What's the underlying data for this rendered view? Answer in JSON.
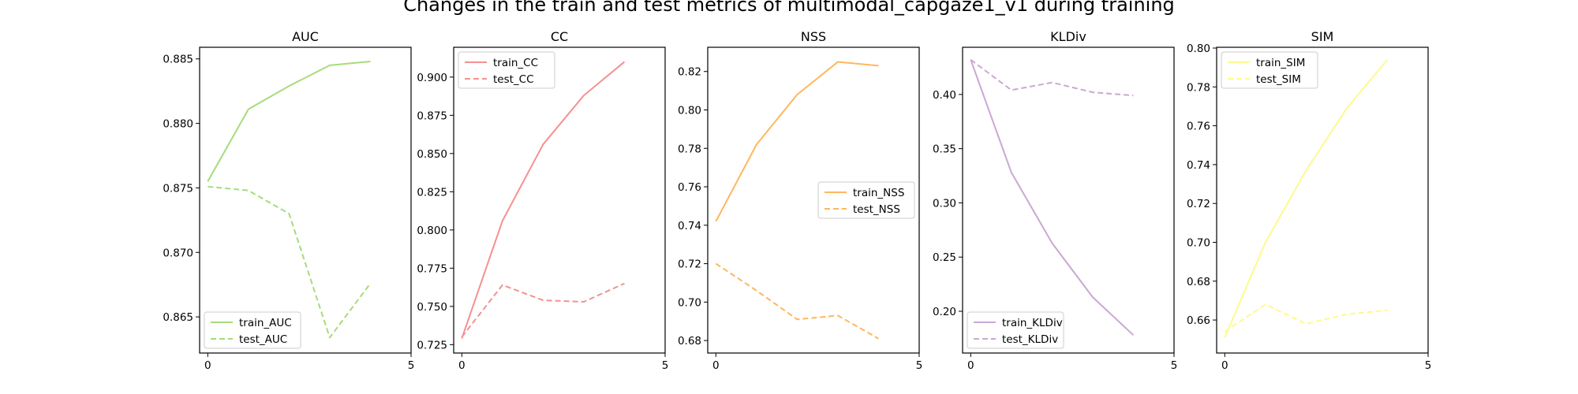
{
  "figure": {
    "title": "Changes in the train and test metrics of multimodal_capgaze1_v1 during training"
  },
  "chart_data": [
    {
      "type": "line",
      "title": "AUC",
      "color": "#a6dc7c",
      "x": [
        0,
        1,
        2,
        3,
        4
      ],
      "xticks": [
        "0",
        "5"
      ],
      "xlim": [
        -0.2,
        5
      ],
      "ylim": [
        0.8622,
        0.8859
      ],
      "yticks": [
        0.865,
        0.87,
        0.875,
        0.88,
        0.885
      ],
      "ytick_labels": [
        "0.865",
        "0.870",
        "0.875",
        "0.880",
        "0.885"
      ],
      "legend_loc": "lower-left",
      "series": [
        {
          "name": "train_AUC",
          "style": "solid",
          "values": [
            0.8755,
            0.8811,
            0.8829,
            0.8845,
            0.8848
          ]
        },
        {
          "name": "test_AUC",
          "style": "dashed",
          "values": [
            0.8751,
            0.8748,
            0.873,
            0.8634,
            0.8676
          ]
        }
      ]
    },
    {
      "type": "line",
      "title": "CC",
      "color": "#f4918f",
      "x": [
        0,
        1,
        2,
        3,
        4
      ],
      "xticks": [
        "0",
        "5"
      ],
      "xlim": [
        -0.2,
        5
      ],
      "ylim": [
        0.7195,
        0.9195
      ],
      "yticks": [
        0.725,
        0.75,
        0.775,
        0.8,
        0.825,
        0.85,
        0.875,
        0.9
      ],
      "ytick_labels": [
        "0.725",
        "0.750",
        "0.775",
        "0.800",
        "0.825",
        "0.850",
        "0.875",
        "0.900"
      ],
      "legend_loc": "upper-left",
      "series": [
        {
          "name": "train_CC",
          "style": "solid",
          "values": [
            0.729,
            0.806,
            0.856,
            0.888,
            0.91
          ]
        },
        {
          "name": "test_CC",
          "style": "dashed",
          "values": [
            0.73,
            0.764,
            0.754,
            0.753,
            0.765
          ]
        }
      ]
    },
    {
      "type": "line",
      "title": "NSS",
      "color": "#ffb75e",
      "x": [
        0,
        1,
        2,
        3,
        4
      ],
      "xticks": [
        "0",
        "5"
      ],
      "xlim": [
        -0.2,
        5
      ],
      "ylim": [
        0.6735,
        0.8326
      ],
      "yticks": [
        0.68,
        0.7,
        0.72,
        0.74,
        0.76,
        0.78,
        0.8,
        0.82
      ],
      "ytick_labels": [
        "0.68",
        "0.70",
        "0.72",
        "0.74",
        "0.76",
        "0.78",
        "0.80",
        "0.82"
      ],
      "legend_loc": "center-right",
      "series": [
        {
          "name": "train_NSS",
          "style": "solid",
          "values": [
            0.742,
            0.782,
            0.808,
            0.825,
            0.823
          ]
        },
        {
          "name": "test_NSS",
          "style": "dashed",
          "values": [
            0.72,
            0.706,
            0.691,
            0.693,
            0.681
          ]
        }
      ]
    },
    {
      "type": "line",
      "title": "KLDiv",
      "color": "#c9a8d4",
      "x": [
        0,
        1,
        2,
        3,
        4
      ],
      "xticks": [
        "0",
        "5"
      ],
      "xlim": [
        -0.2,
        5
      ],
      "ylim": [
        0.1615,
        0.4435
      ],
      "yticks": [
        0.2,
        0.25,
        0.3,
        0.35,
        0.4
      ],
      "ytick_labels": [
        "0.20",
        "0.25",
        "0.30",
        "0.35",
        "0.40"
      ],
      "legend_loc": "lower-left",
      "series": [
        {
          "name": "train_KLDiv",
          "style": "solid",
          "values": [
            0.432,
            0.328,
            0.263,
            0.213,
            0.178
          ]
        },
        {
          "name": "test_KLDiv",
          "style": "dashed",
          "values": [
            0.432,
            0.404,
            0.411,
            0.402,
            0.399
          ]
        }
      ]
    },
    {
      "type": "line",
      "title": "SIM",
      "color": "#fdfa8e",
      "x": [
        0,
        1,
        2,
        3,
        4
      ],
      "xticks": [
        "0",
        "5"
      ],
      "xlim": [
        -0.2,
        5
      ],
      "ylim": [
        0.643,
        0.8004
      ],
      "yticks": [
        0.66,
        0.68,
        0.7,
        0.72,
        0.74,
        0.76,
        0.78,
        0.8
      ],
      "ytick_labels": [
        "0.66",
        "0.68",
        "0.70",
        "0.72",
        "0.74",
        "0.76",
        "0.78",
        "0.80"
      ],
      "legend_loc": "upper-left",
      "series": [
        {
          "name": "train_SIM",
          "style": "solid",
          "values": [
            0.651,
            0.7,
            0.737,
            0.769,
            0.794
          ]
        },
        {
          "name": "test_SIM",
          "style": "dashed",
          "values": [
            0.654,
            0.668,
            0.658,
            0.663,
            0.665
          ]
        }
      ]
    }
  ]
}
